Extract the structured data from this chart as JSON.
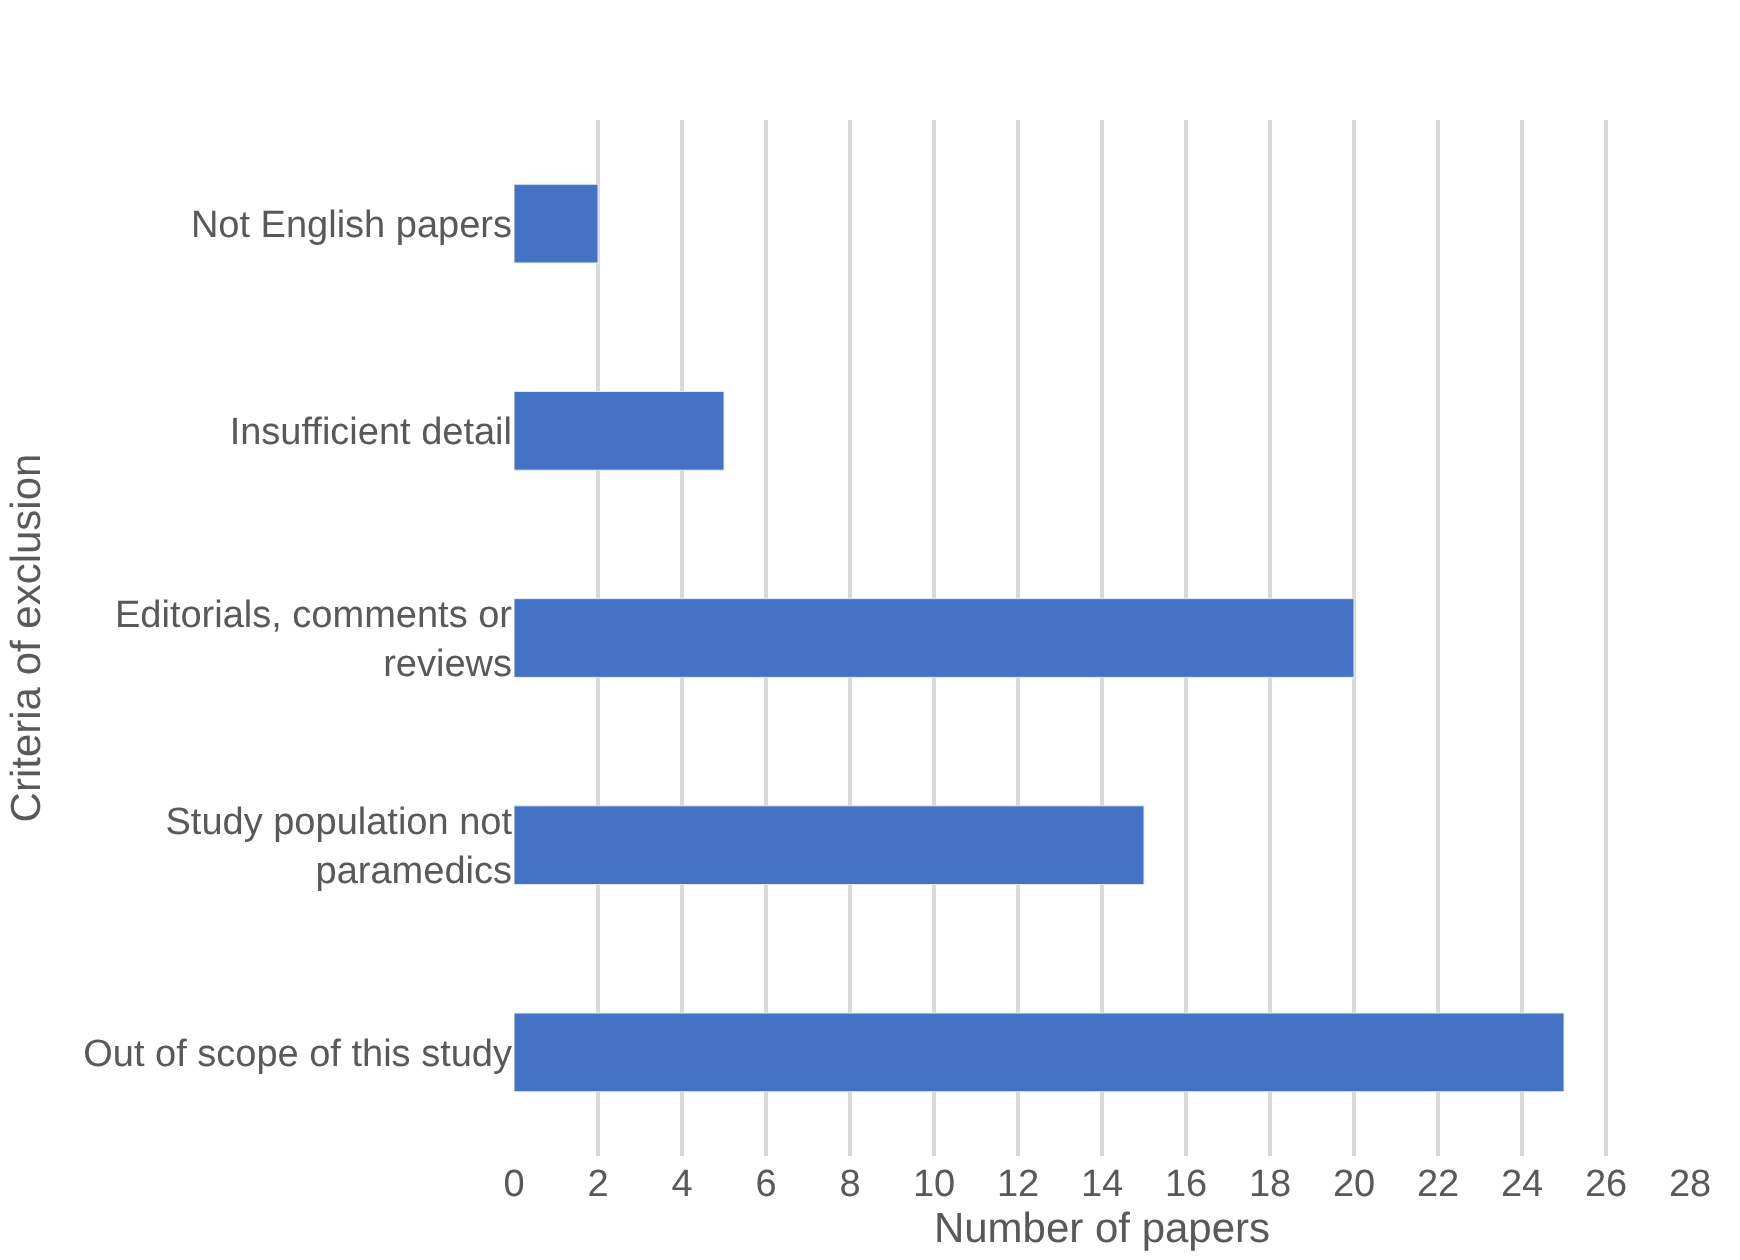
{
  "chart_data": {
    "type": "bar",
    "orientation": "horizontal",
    "xlabel": "Number of papers",
    "ylabel": "Criteria of exclusion",
    "categories": [
      "Not English papers",
      "Insufficient detail",
      "Editorials, comments or reviews",
      "Study population not paramedics",
      "Out of scope of this study"
    ],
    "values": [
      2,
      5,
      20,
      15,
      25
    ],
    "color": "#4472c4",
    "xlim": [
      0,
      28
    ],
    "xticks": [
      0,
      2,
      4,
      6,
      8,
      10,
      12,
      14,
      16,
      18,
      20,
      22,
      24,
      26,
      28
    ],
    "grid": "x"
  }
}
